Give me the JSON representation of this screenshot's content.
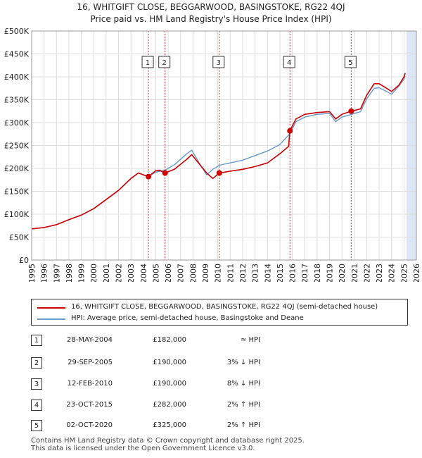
{
  "title_line1": "16, WHITGIFT CLOSE, BEGGARWOOD, BASINGSTOKE, RG22 4QJ",
  "title_line2": "Price paid vs. HM Land Registry's House Price Index (HPI)",
  "colors": {
    "price": "#cc0000",
    "hpi": "#6699cc",
    "shade": "#dde6f5",
    "grid": "#dddddd",
    "vline": "#cc0000"
  },
  "legend": {
    "price_label": "16, WHITGIFT CLOSE, BEGGARWOOD, BASINGSTOKE, RG22 4QJ (semi-detached house)",
    "hpi_label": "HPI: Average price, semi-detached house, Basingstoke and Deane"
  },
  "transactions": [
    {
      "num": "1",
      "date": "28-MAY-2004",
      "price": "£182,000",
      "hpi": "≈ HPI"
    },
    {
      "num": "2",
      "date": "29-SEP-2005",
      "price": "£190,000",
      "hpi": "3% ↓ HPI"
    },
    {
      "num": "3",
      "date": "12-FEB-2010",
      "price": "£190,000",
      "hpi": "8% ↓ HPI"
    },
    {
      "num": "4",
      "date": "23-OCT-2015",
      "price": "£282,000",
      "hpi": "2% ↑ HPI"
    },
    {
      "num": "5",
      "date": "02-OCT-2020",
      "price": "£325,000",
      "hpi": "2% ↑ HPI"
    }
  ],
  "footer": {
    "line1": "Contains HM Land Registry data © Crown copyright and database right 2025.",
    "line2": "This data is licensed under the Open Government Licence v3.0."
  },
  "chart_data": {
    "type": "line",
    "title": "Price paid vs. HM Land Registry's House Price Index (HPI)",
    "xlabel": "",
    "ylabel": "",
    "xlim": [
      1995,
      2026
    ],
    "ylim": [
      0,
      500000
    ],
    "x_ticks": [
      1995,
      1996,
      1997,
      1998,
      1999,
      2000,
      2001,
      2002,
      2003,
      2004,
      2005,
      2006,
      2007,
      2008,
      2009,
      2010,
      2011,
      2012,
      2013,
      2014,
      2015,
      2016,
      2017,
      2018,
      2019,
      2020,
      2021,
      2022,
      2023,
      2024,
      2025,
      2026
    ],
    "y_ticks": [
      0,
      50000,
      100000,
      150000,
      200000,
      250000,
      300000,
      350000,
      400000,
      450000,
      500000
    ],
    "y_tick_labels": [
      "£0",
      "£50K",
      "£100K",
      "£150K",
      "£200K",
      "£250K",
      "£300K",
      "£350K",
      "£400K",
      "£450K",
      "£500K"
    ],
    "shaded_region": [
      2025.2,
      2026
    ],
    "series": [
      {
        "name": "16, WHITGIFT CLOSE, BEGGARWOOD, BASINGSTOKE, RG22 4QJ (semi-detached house)",
        "color": "#cc0000",
        "x": [
          1995,
          1996,
          1997,
          1998,
          1999,
          2000,
          2001,
          2002,
          2003,
          2003.6,
          2004.41,
          2005.0,
          2005.3,
          2005.75,
          2006.5,
          2007.5,
          2007.9,
          2008.5,
          2009.1,
          2009.6,
          2010.12,
          2010.6,
          2011,
          2012,
          2013,
          2014,
          2015,
          2015.7,
          2015.81,
          2016.3,
          2017,
          2018,
          2019,
          2019.5,
          2020,
          2020.75,
          2021.5,
          2022,
          2022.6,
          2023,
          2023.6,
          2024,
          2024.6,
          2025,
          2025.1
        ],
        "y": [
          68000,
          71000,
          77000,
          88000,
          98000,
          112000,
          132000,
          152000,
          178000,
          190000,
          182000,
          195000,
          196000,
          190000,
          198000,
          220000,
          230000,
          210000,
          190000,
          178000,
          190000,
          192000,
          194000,
          198000,
          204000,
          212000,
          232000,
          248000,
          282000,
          308000,
          318000,
          322000,
          324000,
          308000,
          318000,
          325000,
          330000,
          360000,
          385000,
          385000,
          375000,
          368000,
          382000,
          400000,
          408000
        ]
      },
      {
        "name": "HPI: Average price, semi-detached house, Basingstoke and Deane",
        "color": "#6699cc",
        "x": [
          1995,
          1996,
          1997,
          1998,
          1999,
          2000,
          2001,
          2002,
          2003,
          2003.6,
          2004.41,
          2005,
          2005.75,
          2006.5,
          2007.5,
          2007.9,
          2008.5,
          2009.1,
          2009.6,
          2010.12,
          2011,
          2012,
          2013,
          2014,
          2015,
          2015.81,
          2016.3,
          2017,
          2018,
          2019,
          2019.5,
          2020,
          2020.75,
          2021.5,
          2022,
          2022.6,
          2023,
          2023.6,
          2024,
          2024.6,
          2025,
          2025.1
        ],
        "y": [
          68000,
          71000,
          77000,
          88000,
          98000,
          112000,
          132000,
          152000,
          178000,
          190000,
          182000,
          192000,
          196000,
          208000,
          232000,
          240000,
          212000,
          186000,
          198000,
          207000,
          212000,
          218000,
          228000,
          238000,
          252000,
          276000,
          302000,
          312000,
          318000,
          320000,
          302000,
          312000,
          318000,
          324000,
          352000,
          375000,
          376000,
          368000,
          362000,
          380000,
          395000,
          402000
        ]
      }
    ],
    "sale_markers": [
      {
        "label": "1",
        "x": 2004.41,
        "y": 182000
      },
      {
        "label": "2",
        "x": 2005.75,
        "y": 190000
      },
      {
        "label": "3",
        "x": 2010.12,
        "y": 190000
      },
      {
        "label": "4",
        "x": 2015.81,
        "y": 282000
      },
      {
        "label": "5",
        "x": 2020.75,
        "y": 325000
      }
    ]
  }
}
